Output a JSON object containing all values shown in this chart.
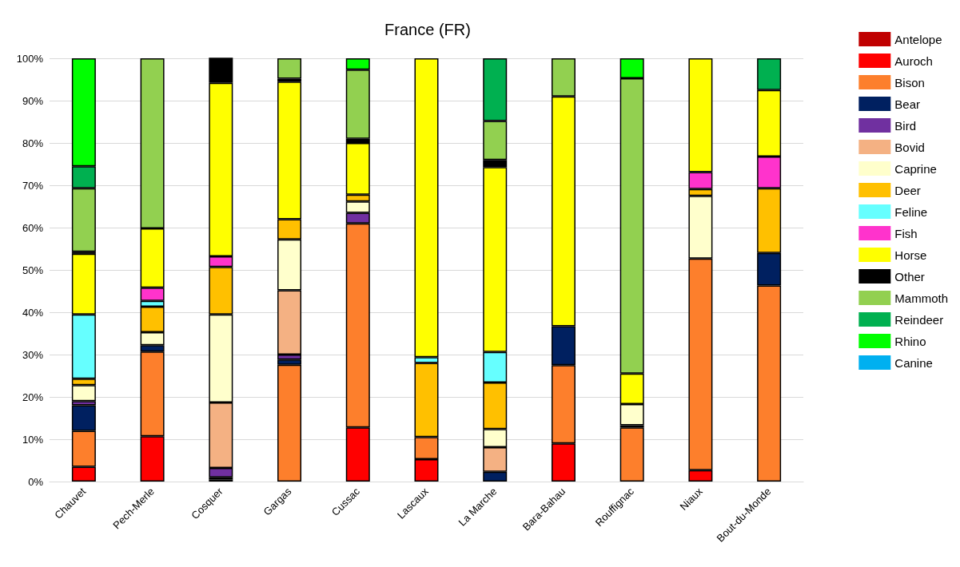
{
  "chart_data": {
    "type": "bar",
    "title": "France (FR)",
    "stacked": true,
    "grid": "y",
    "legend": "right",
    "categories": [
      "Chauvet",
      "Pech-Merle",
      "Cosquer",
      "Gargas",
      "Cussac",
      "Lascaux",
      "La Marche",
      "Bara-Bahau",
      "Rouffignac",
      "Niaux",
      "Bout-du-Monde"
    ],
    "ylim": [
      0,
      100
    ],
    "yticks": [
      {
        "value": 0,
        "label": "0%"
      },
      {
        "value": 10,
        "label": "10%"
      },
      {
        "value": 20,
        "label": "20%"
      },
      {
        "value": 30,
        "label": "30%"
      },
      {
        "value": 40,
        "label": "40%"
      },
      {
        "value": 50,
        "label": "50%"
      },
      {
        "value": 60,
        "label": "60%"
      },
      {
        "value": 70,
        "label": "70%"
      },
      {
        "value": 80,
        "label": "80%"
      },
      {
        "value": 90,
        "label": "90%"
      },
      {
        "value": 100,
        "label": "100%"
      }
    ],
    "series": [
      {
        "name": "Antelope",
        "color": "#c00000",
        "values": [
          null,
          null,
          null,
          null,
          null,
          null,
          null,
          null,
          null,
          null,
          null
        ]
      },
      {
        "name": "Auroch",
        "color": "#ff0000",
        "values": [
          3.5,
          10.7,
          0.5,
          null,
          12.8,
          5.3,
          null,
          9,
          null,
          2.7,
          null
        ]
      },
      {
        "name": "Bison",
        "color": "#fd7f2c",
        "values": [
          8.5,
          20,
          null,
          27.6,
          48.2,
          5.2,
          null,
          18.5,
          12.8,
          50,
          46.3
        ]
      },
      {
        "name": "Bear",
        "color": "#002060",
        "values": [
          6,
          1.5,
          0.5,
          1.2,
          null,
          null,
          2.3,
          9.2,
          0.5,
          null,
          7.7
        ]
      },
      {
        "name": "Bird",
        "color": "#7030a0",
        "values": [
          1,
          null,
          2.2,
          1.2,
          2.5,
          null,
          null,
          null,
          null,
          null,
          null
        ]
      },
      {
        "name": "Bovid",
        "color": "#f4b183",
        "values": [
          null,
          null,
          15.5,
          15.2,
          null,
          null,
          5.8,
          null,
          null,
          null,
          null
        ]
      },
      {
        "name": "Caprine",
        "color": "#ffffcc",
        "values": [
          3.8,
          3.1,
          20.8,
          12,
          2.7,
          null,
          4.3,
          null,
          5,
          14.8,
          null
        ]
      },
      {
        "name": "Deer",
        "color": "#ffc000",
        "values": [
          1.5,
          6,
          11.2,
          4.8,
          1.6,
          17.5,
          11,
          null,
          null,
          1.6,
          15.3
        ]
      },
      {
        "name": "Feline",
        "color": "#66ffff",
        "values": [
          15.2,
          1.4,
          null,
          null,
          null,
          1.4,
          7.2,
          null,
          null,
          null,
          null
        ]
      },
      {
        "name": "Fish",
        "color": "#ff33cc",
        "values": [
          null,
          3.1,
          2.5,
          null,
          null,
          null,
          null,
          null,
          null,
          4,
          7.5
        ]
      },
      {
        "name": "Horse",
        "color": "#ffff00",
        "values": [
          14.3,
          14,
          41,
          32.5,
          12.2,
          70.6,
          43.7,
          54.3,
          7.2,
          26.9,
          15.7
        ]
      },
      {
        "name": "Other",
        "color": "#000000",
        "values": [
          0.5,
          null,
          6,
          0.7,
          1,
          null,
          1.7,
          null,
          null,
          null,
          null
        ]
      },
      {
        "name": "Mammoth",
        "color": "#92d050",
        "values": [
          15,
          40.2,
          null,
          4.8,
          16.3,
          null,
          9.2,
          9,
          69.8,
          null,
          null
        ]
      },
      {
        "name": "Reindeer",
        "color": "#00b050",
        "values": [
          5.2,
          null,
          null,
          null,
          null,
          null,
          14.8,
          null,
          null,
          null,
          7.5
        ]
      },
      {
        "name": "Rhino",
        "color": "#00ff00",
        "values": [
          25.5,
          null,
          null,
          null,
          2.7,
          null,
          null,
          null,
          4.7,
          null,
          null
        ]
      },
      {
        "name": "Canine",
        "color": "#00b0f0",
        "values": [
          null,
          null,
          null,
          null,
          null,
          null,
          null,
          null,
          null,
          null,
          null
        ]
      }
    ]
  }
}
